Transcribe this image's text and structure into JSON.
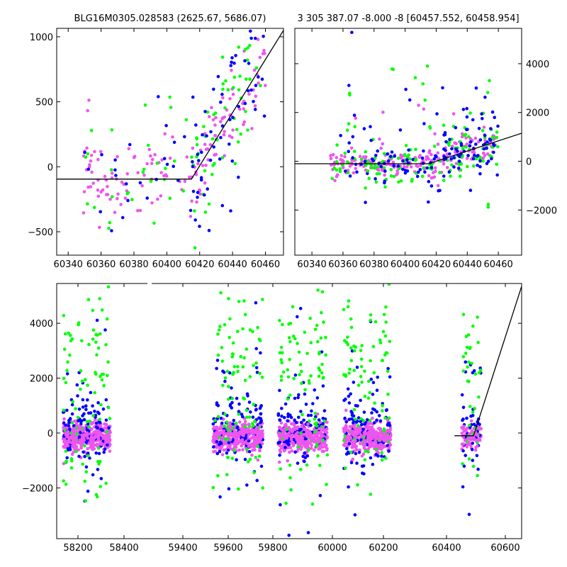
{
  "colors": {
    "green": "#00ff00",
    "blue": "#0000ff",
    "magenta": "#ee55ee",
    "model": "#000000"
  },
  "chart_data": [
    {
      "type": "scatter",
      "title": "BLG16M0305.028583 (2625.67, 5686.07)",
      "xlim": [
        60333,
        60471
      ],
      "ylim": [
        -680,
        1065
      ],
      "xticks": [
        60340,
        60360,
        60380,
        60400,
        60420,
        60440,
        60460
      ],
      "yticks": [
        -500,
        0,
        500,
        1000
      ],
      "yaxis_side": "left",
      "model_line": [
        [
          60333,
          -95
        ],
        [
          60415,
          -95
        ],
        [
          60471,
          1050
        ]
      ],
      "series_generation": {
        "segments": [
          {
            "x0": 60348,
            "x1": 60415,
            "ymean": -60,
            "ysd": 230,
            "counts": {
              "green": 28,
              "blue": 24,
              "magenta": 78
            },
            "seed": 11
          },
          {
            "x0": 60415,
            "x1": 60460,
            "trend": [
              [
                60415,
                -70
              ],
              [
                60460,
                780
              ]
            ],
            "ysd": 260,
            "counts": {
              "green": 55,
              "blue": 60,
              "magenta": 70
            },
            "seed": 12
          }
        ]
      },
      "scatter_range_hint": "points clipped to axes"
    },
    {
      "type": "scatter",
      "title": "3 305 387.07 -8.000 -8 [60457.552, 60458.954]",
      "xlim": [
        60329,
        60475
      ],
      "ylim": [
        -3850,
        5450
      ],
      "xticks": [
        60340,
        60360,
        60380,
        60400,
        60420,
        60440,
        60460
      ],
      "yticks": [
        -2000,
        0,
        2000,
        4000
      ],
      "yaxis_side": "right",
      "model_line": [
        [
          60329,
          -100
        ],
        [
          60415,
          -100
        ],
        [
          60475,
          1150
        ]
      ],
      "series_generation": {
        "segments": [
          {
            "x0": 60352,
            "x1": 60415,
            "ymean": -100,
            "ysd": 320,
            "counts": {
              "green": 60,
              "blue": 40,
              "magenta": 130
            },
            "seed": 21
          },
          {
            "x0": 60415,
            "x1": 60460,
            "trend": [
              [
                60415,
                -80
              ],
              [
                60460,
                800
              ]
            ],
            "ysd": 500,
            "counts": {
              "green": 60,
              "blue": 70,
              "magenta": 90
            },
            "seed": 22
          },
          {
            "x0": 60360,
            "x1": 60460,
            "ymean": 1800,
            "ysd": 1400,
            "counts": {
              "green": 30,
              "blue": 35,
              "magenta": 10
            },
            "seed": 23
          }
        ]
      }
    },
    {
      "type": "scatter",
      "title": "",
      "xlim": [
        58120,
        60680
      ],
      "ylim": [
        -3850,
        5450
      ],
      "xticks": [
        58200,
        58400,
        59400,
        59600,
        59800,
        60000,
        60200,
        60400,
        60600
      ],
      "tick_labels": [
        "58200",
        "58400",
        "59400",
        "59600",
        "59800",
        "60000",
        "60200",
        "60400",
        "60600"
      ],
      "yticks": [
        -2000,
        0,
        2000,
        4000
      ],
      "yaxis_side": "left",
      "model_line": [
        [
          60310,
          -100
        ],
        [
          60415,
          -100
        ],
        [
          60680,
          5350
        ]
      ],
      "seasons": [
        {
          "x0": 58155,
          "x1": 58415,
          "seed": 31
        },
        {
          "x0": 58980,
          "x1": 59255,
          "seed": 32
        },
        {
          "x0": 59340,
          "x1": 59610,
          "seed": 33
        },
        {
          "x0": 59700,
          "x1": 59960,
          "seed": 34
        },
        {
          "x0": 60350,
          "x1": 60460,
          "seed": 35,
          "small": true
        }
      ]
    }
  ]
}
